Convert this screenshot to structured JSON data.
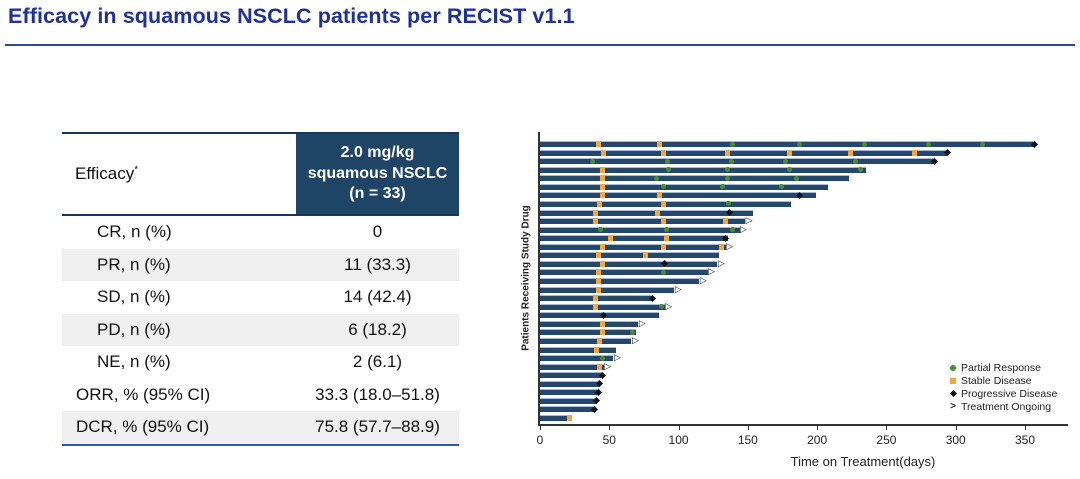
{
  "slide": {
    "title": "Efficacy in squamous NSCLC patients per RECIST v1.1"
  },
  "table": {
    "header": {
      "left": "Efficacy",
      "left_sup": "*",
      "right_lines": [
        "2.0 mg/kg",
        "squamous NSCLC",
        "(n = 33)"
      ]
    },
    "rows": [
      {
        "label": "CR, n (%)",
        "value": "0",
        "indent": true,
        "shaded": false
      },
      {
        "label": "PR, n (%)",
        "value": "11 (33.3)",
        "indent": true,
        "shaded": true
      },
      {
        "label": "SD, n (%)",
        "value": "14 (42.4)",
        "indent": true,
        "shaded": false
      },
      {
        "label": "PD, n (%)",
        "value": "6 (18.2)",
        "indent": true,
        "shaded": true
      },
      {
        "label": "NE, n (%)",
        "value": "2 (6.1)",
        "indent": true,
        "shaded": false
      },
      {
        "label": "ORR, % (95% CI)",
        "value": "33.3 (18.0–51.8)",
        "indent": false,
        "shaded": false
      },
      {
        "label": "DCR, % (95% CI)",
        "value": "75.8 (57.7–88.9)",
        "indent": false,
        "shaded": true
      }
    ]
  },
  "chart_data": {
    "type": "bar",
    "subtype": "swimmer-plot",
    "xlabel": "Time on Treatment(days)",
    "ylabel": "Patients Receiving Study Drug",
    "xticks": [
      0,
      50,
      100,
      150,
      200,
      250,
      300,
      350
    ],
    "xlim": [
      0,
      380
    ],
    "bar_color": "#24476b",
    "marker_colors": {
      "PR": "#4a8f2c",
      "SD": "#f3a73d",
      "PD": "#111111"
    },
    "legend": [
      {
        "label": "Partial Response",
        "marker": "PR"
      },
      {
        "label": "Stable Disease",
        "marker": "SD"
      },
      {
        "label": "Progressive Disease",
        "marker": "PD"
      },
      {
        "label": "Treatment Ongoing",
        "marker": "ongoing"
      }
    ],
    "patients": [
      {
        "days": 357,
        "ongoing": false,
        "events": [
          {
            "day": 42,
            "type": "SD"
          },
          {
            "day": 86,
            "type": "SD"
          },
          {
            "day": 139,
            "type": "PR"
          },
          {
            "day": 187,
            "type": "PR"
          },
          {
            "day": 234,
            "type": "PR"
          },
          {
            "day": 280,
            "type": "PR"
          },
          {
            "day": 319,
            "type": "PR"
          },
          {
            "day": 357,
            "type": "PD"
          }
        ]
      },
      {
        "days": 294,
        "ongoing": false,
        "events": [
          {
            "day": 46,
            "type": "SD"
          },
          {
            "day": 89,
            "type": "SD"
          },
          {
            "day": 135,
            "type": "SD"
          },
          {
            "day": 180,
            "type": "SD"
          },
          {
            "day": 224,
            "type": "SD"
          },
          {
            "day": 270,
            "type": "SD"
          },
          {
            "day": 294,
            "type": "PD"
          }
        ]
      },
      {
        "days": 285,
        "ongoing": false,
        "events": [
          {
            "day": 38,
            "type": "PR"
          },
          {
            "day": 92,
            "type": "PR"
          },
          {
            "day": 138,
            "type": "PR"
          },
          {
            "day": 177,
            "type": "PR"
          },
          {
            "day": 228,
            "type": "PR"
          },
          {
            "day": 285,
            "type": "PD"
          }
        ]
      },
      {
        "days": 235,
        "ongoing": false,
        "events": [
          {
            "day": 45,
            "type": "SD"
          },
          {
            "day": 93,
            "type": "PR"
          },
          {
            "day": 135,
            "type": "PR"
          },
          {
            "day": 180,
            "type": "PR"
          },
          {
            "day": 231,
            "type": "PR"
          }
        ]
      },
      {
        "days": 223,
        "ongoing": false,
        "events": [
          {
            "day": 45,
            "type": "SD"
          },
          {
            "day": 84,
            "type": "PR"
          },
          {
            "day": 135,
            "type": "PR"
          },
          {
            "day": 185,
            "type": "PR"
          }
        ]
      },
      {
        "days": 208,
        "ongoing": false,
        "events": [
          {
            "day": 45,
            "type": "SD"
          },
          {
            "day": 89,
            "type": "PR"
          },
          {
            "day": 132,
            "type": "PR"
          },
          {
            "day": 174,
            "type": "PR"
          }
        ]
      },
      {
        "days": 199,
        "ongoing": false,
        "events": [
          {
            "day": 45,
            "type": "SD"
          },
          {
            "day": 86,
            "type": "SD"
          },
          {
            "day": 187,
            "type": "PD"
          }
        ]
      },
      {
        "days": 181,
        "ongoing": false,
        "events": [
          {
            "day": 43,
            "type": "SD"
          },
          {
            "day": 89,
            "type": "SD"
          },
          {
            "day": 136,
            "type": "PR"
          }
        ]
      },
      {
        "days": 154,
        "ongoing": false,
        "events": [
          {
            "day": 40,
            "type": "SD"
          },
          {
            "day": 85,
            "type": "SD"
          },
          {
            "day": 137,
            "type": "PD"
          }
        ]
      },
      {
        "days": 148,
        "ongoing": true,
        "events": [
          {
            "day": 40,
            "type": "SD"
          },
          {
            "day": 89,
            "type": "SD"
          },
          {
            "day": 134,
            "type": "SD"
          }
        ]
      },
      {
        "days": 144,
        "ongoing": true,
        "events": [
          {
            "day": 44,
            "type": "PR"
          },
          {
            "day": 91,
            "type": "PR"
          },
          {
            "day": 139,
            "type": "PR"
          }
        ]
      },
      {
        "days": 136,
        "ongoing": false,
        "events": [
          {
            "day": 51,
            "type": "SD"
          },
          {
            "day": 91,
            "type": "SD"
          },
          {
            "day": 134,
            "type": "PD"
          }
        ]
      },
      {
        "days": 134,
        "ongoing": true,
        "events": [
          {
            "day": 45,
            "type": "SD"
          },
          {
            "day": 89,
            "type": "SD"
          },
          {
            "day": 131,
            "type": "SD"
          }
        ]
      },
      {
        "days": 129,
        "ongoing": false,
        "events": [
          {
            "day": 42,
            "type": "SD"
          },
          {
            "day": 76,
            "type": "SD"
          }
        ]
      },
      {
        "days": 128,
        "ongoing": true,
        "events": [
          {
            "day": 45,
            "type": "SD"
          },
          {
            "day": 90,
            "type": "PD"
          }
        ]
      },
      {
        "days": 121,
        "ongoing": true,
        "events": [
          {
            "day": 42,
            "type": "SD"
          },
          {
            "day": 89,
            "type": "PR"
          }
        ]
      },
      {
        "days": 115,
        "ongoing": true,
        "events": [
          {
            "day": 42,
            "type": "SD"
          }
        ]
      },
      {
        "days": 97,
        "ongoing": true,
        "events": [
          {
            "day": 42,
            "type": "SD"
          }
        ]
      },
      {
        "days": 81,
        "ongoing": false,
        "events": [
          {
            "day": 40,
            "type": "SD"
          },
          {
            "day": 81,
            "type": "PD"
          }
        ]
      },
      {
        "days": 90,
        "ongoing": true,
        "events": [
          {
            "day": 40,
            "type": "SD"
          },
          {
            "day": 88,
            "type": "PR"
          }
        ]
      },
      {
        "days": 86,
        "ongoing": false,
        "events": [
          {
            "day": 46,
            "type": "PD"
          }
        ]
      },
      {
        "days": 71,
        "ongoing": true,
        "events": [
          {
            "day": 45,
            "type": "SD"
          }
        ]
      },
      {
        "days": 69,
        "ongoing": false,
        "events": [
          {
            "day": 45,
            "type": "SD"
          },
          {
            "day": 67,
            "type": "PR"
          }
        ]
      },
      {
        "days": 66,
        "ongoing": true,
        "events": [
          {
            "day": 43,
            "type": "SD"
          }
        ]
      },
      {
        "days": 55,
        "ongoing": false,
        "events": [
          {
            "day": 41,
            "type": "SD"
          }
        ]
      },
      {
        "days": 53,
        "ongoing": true,
        "events": [
          {
            "day": 45,
            "type": "PR"
          }
        ]
      },
      {
        "days": 46,
        "ongoing": true,
        "events": [
          {
            "day": 43,
            "type": "SD"
          }
        ]
      },
      {
        "days": 45,
        "ongoing": false,
        "events": [
          {
            "day": 45,
            "type": "PD"
          }
        ]
      },
      {
        "days": 43,
        "ongoing": false,
        "events": [
          {
            "day": 43,
            "type": "PD"
          }
        ]
      },
      {
        "days": 42,
        "ongoing": false,
        "events": [
          {
            "day": 42,
            "type": "PD"
          }
        ]
      },
      {
        "days": 41,
        "ongoing": false,
        "events": [
          {
            "day": 41,
            "type": "PD"
          }
        ]
      },
      {
        "days": 39,
        "ongoing": false,
        "events": [
          {
            "day": 39,
            "type": "PD"
          }
        ]
      },
      {
        "days": 23,
        "ongoing": false,
        "events": [
          {
            "day": 21,
            "type": "SD"
          }
        ]
      }
    ]
  }
}
